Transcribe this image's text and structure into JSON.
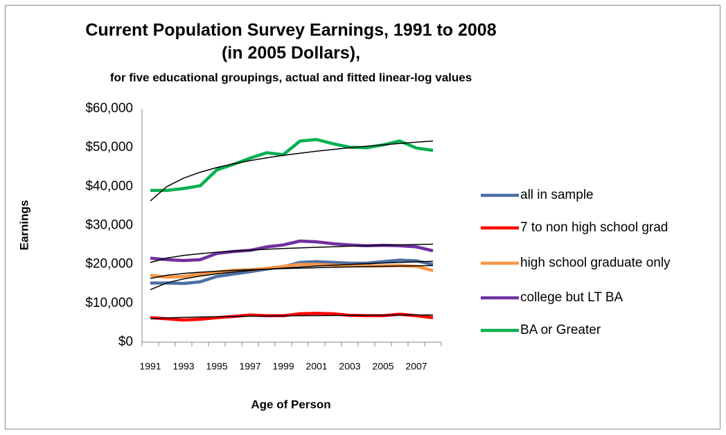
{
  "chart_data": {
    "type": "line",
    "title": "Current Population Survey Earnings, 1991 to 2008",
    "title_line2": "(in 2005 Dollars),",
    "subtitle": "for five educational groupings, actual and fitted linear-log values",
    "y_label": "Earnings",
    "x_label": "Age of Person",
    "categories": [
      "1991",
      null,
      "1993",
      null,
      "1995",
      null,
      "1997",
      null,
      "1999",
      null,
      "2001",
      null,
      "2003",
      null,
      "2005",
      null,
      "2007",
      null
    ],
    "ylim": [
      0,
      60000
    ],
    "yticks": [
      {
        "value": 0,
        "label": "$0"
      },
      {
        "value": 10000,
        "label": "$10,000"
      },
      {
        "value": 20000,
        "label": "$20,000"
      },
      {
        "value": 30000,
        "label": "$30,000"
      },
      {
        "value": 40000,
        "label": "$40,000"
      },
      {
        "value": 50000,
        "label": "$50,000"
      },
      {
        "value": 60000,
        "label": "$60,000"
      }
    ],
    "grid": false,
    "legend": "right",
    "series": [
      {
        "name": "all in sample",
        "color": "#4a6fa5",
        "values": [
          15200,
          15200,
          15100,
          15500,
          16900,
          17500,
          18100,
          18800,
          19400,
          20500,
          20700,
          20500,
          20300,
          20300,
          20700,
          21100,
          20900,
          20000
        ]
      },
      {
        "name": "7 to non high school grad",
        "color": "#ff0000",
        "values": [
          6300,
          6000,
          5700,
          5900,
          6300,
          6600,
          7000,
          6800,
          6800,
          7300,
          7400,
          7300,
          6900,
          6800,
          6800,
          7200,
          6800,
          6300
        ]
      },
      {
        "name": "high school graduate only",
        "color": "#f79646",
        "values": [
          17200,
          16700,
          16900,
          17500,
          18000,
          18500,
          18600,
          19000,
          19500,
          20000,
          20000,
          19800,
          19700,
          19600,
          19600,
          19700,
          19500,
          18400
        ]
      },
      {
        "name": "college but LT BA",
        "color": "#7030a0",
        "values": [
          21600,
          21200,
          21000,
          21200,
          22800,
          23300,
          23600,
          24500,
          25000,
          26000,
          25800,
          25300,
          25000,
          24800,
          24900,
          24800,
          24500,
          23500
        ]
      },
      {
        "name": "BA or Greater",
        "color": "#00b050",
        "values": [
          39000,
          39000,
          39500,
          40200,
          44300,
          45700,
          47300,
          48700,
          48200,
          51700,
          52100,
          51000,
          50100,
          50000,
          50700,
          51700,
          49900,
          49300
        ]
      }
    ],
    "trendline_color": "#000000",
    "trendlines": [
      [
        13500,
        15250,
        16280,
        17000,
        17560,
        18030,
        18420,
        18750,
        19050,
        19320,
        19560,
        19780,
        19980,
        20170,
        20340,
        20500,
        20660,
        20800
      ],
      [
        6000,
        6240,
        6380,
        6480,
        6560,
        6620,
        6670,
        6720,
        6760,
        6800,
        6830,
        6860,
        6890,
        6910,
        6940,
        6960,
        6980,
        7000
      ],
      [
        16400,
        17190,
        17660,
        17980,
        18240,
        18450,
        18620,
        18770,
        18910,
        19030,
        19140,
        19240,
        19330,
        19410,
        19490,
        19570,
        19640,
        19700
      ],
      [
        20500,
        21630,
        22290,
        22750,
        23120,
        23410,
        23660,
        23880,
        24070,
        24240,
        24400,
        24540,
        24670,
        24790,
        24900,
        25010,
        25110,
        25200
      ],
      [
        36300,
        40000,
        42160,
        43690,
        44880,
        45850,
        46670,
        47380,
        48010,
        48570,
        49080,
        49550,
        49970,
        50370,
        50730,
        51080,
        51400,
        51700
      ]
    ]
  }
}
